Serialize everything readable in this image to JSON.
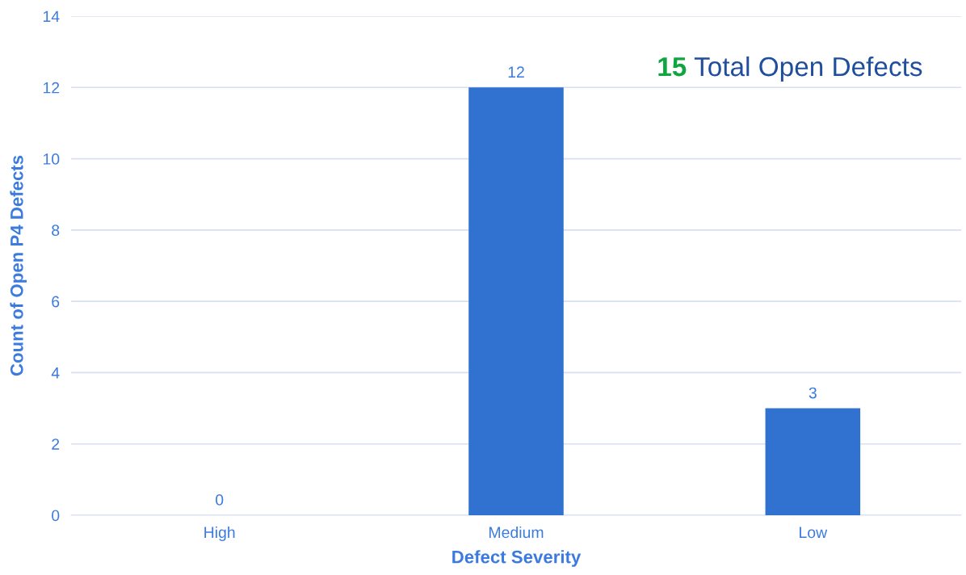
{
  "chart_data": {
    "type": "bar",
    "xlabel": "Defect Severity",
    "ylabel": "Count of Open P4 Defects",
    "categories": [
      "High",
      "Medium",
      "Low"
    ],
    "values": [
      0,
      12,
      3
    ],
    "color": "#3171cf",
    "ylim": [
      0,
      14
    ],
    "yticks": [
      0,
      2,
      4,
      6,
      8,
      10,
      12,
      14
    ],
    "grid": "y",
    "data_labels": true,
    "annotations": [
      "15",
      "Total Open Defects"
    ]
  }
}
